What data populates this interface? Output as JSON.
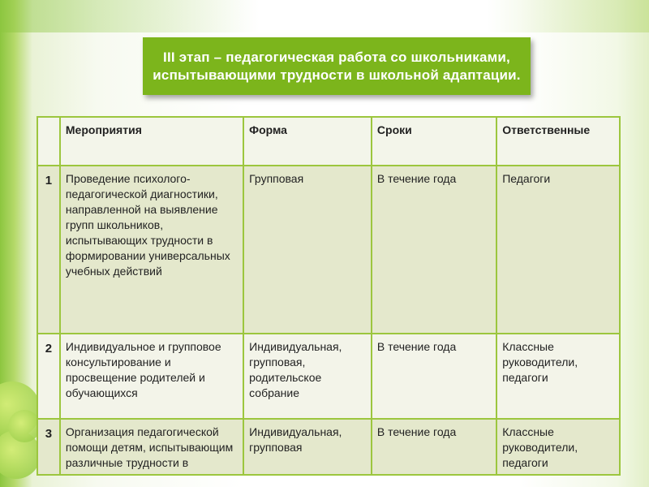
{
  "title": "III этап – педагогическая работа со школьниками, испытывающими трудности в школьной адаптации.",
  "table": {
    "headers": [
      "",
      "Мероприятия",
      "Форма",
      "Сроки",
      "Ответственные"
    ],
    "rows": [
      {
        "num": "1",
        "event": "Проведение психолого-педагогической диагностики, направленной на выявление групп школьников, испытывающих трудности в формировании универсальных учебных действий",
        "form": "Групповая",
        "term": "В течение года",
        "responsible": "Педагоги"
      },
      {
        "num": "2",
        "event": "Индивидуальное и групповое консультирование и просвещение родителей и обучающихся",
        "form": "Индивидуальная, групповая, родительское собрание",
        "term": "В течение года",
        "responsible": "Классные руководители, педагоги"
      },
      {
        "num": "3",
        "event": "Организация педагогической помощи детям, испытывающим различные трудности в",
        "form": "Индивидуальная, групповая",
        "term": "В течение года",
        "responsible": "Классные руководители, педагоги"
      }
    ]
  },
  "colors": {
    "accent": "#7cb51c",
    "border": "#9cc63e"
  }
}
